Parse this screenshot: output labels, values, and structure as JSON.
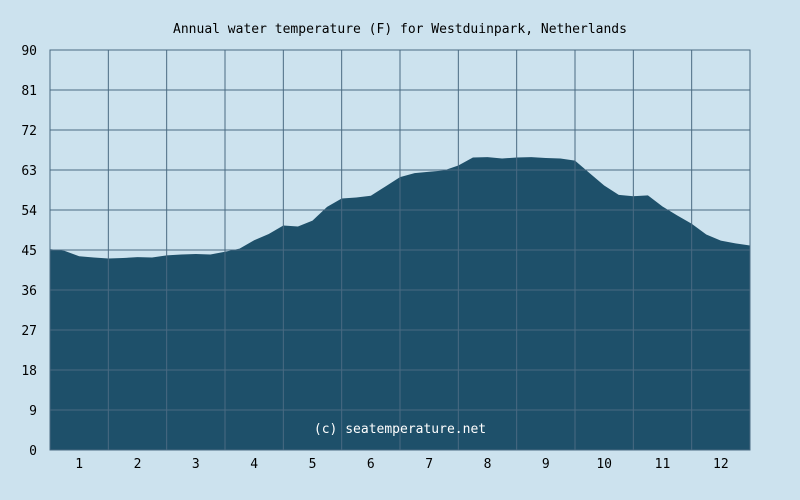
{
  "chart_data": {
    "type": "area",
    "title": "Annual water temperature (F) for Westduinpark, Netherlands",
    "xlabel": "",
    "ylabel": "",
    "credit": "(c) seatemperature.net",
    "ylim": [
      0,
      90
    ],
    "xlim": [
      0.5,
      12.5
    ],
    "y_ticks": [
      0,
      9,
      18,
      27,
      36,
      45,
      54,
      63,
      72,
      81,
      90
    ],
    "x_ticks": [
      1,
      2,
      3,
      4,
      5,
      6,
      7,
      8,
      9,
      10,
      11,
      12
    ],
    "grid": true,
    "colors": {
      "background": "#cce2ee",
      "plot_background": "#cce2ee",
      "fill": "#1e506a",
      "grid": "#4a6a82"
    },
    "series": [
      {
        "x": [
          0.5,
          0.75,
          1.0,
          1.25,
          1.5,
          1.75,
          2.0,
          2.25,
          2.5,
          2.75,
          3.0,
          3.25,
          3.5,
          3.75,
          4.0,
          4.25,
          4.5,
          4.75,
          5.0,
          5.25,
          5.5,
          5.75,
          6.0,
          6.25,
          6.5,
          6.75,
          7.0,
          7.25,
          7.5,
          7.75,
          8.0,
          8.25,
          8.5,
          8.75,
          9.0,
          9.25,
          9.5,
          9.75,
          10.0,
          10.25,
          10.5,
          10.75,
          11.0,
          11.25,
          11.5,
          11.75,
          12.0,
          12.25,
          12.5
        ],
        "values": [
          45.2,
          44.8,
          43.6,
          43.3,
          43.1,
          43.2,
          43.4,
          43.3,
          43.8,
          44.0,
          44.1,
          44.0,
          44.6,
          45.3,
          47.2,
          48.6,
          50.5,
          50.3,
          51.6,
          54.7,
          56.6,
          56.8,
          57.2,
          59.3,
          61.4,
          62.3,
          62.6,
          62.9,
          64.0,
          65.8,
          65.9,
          65.6,
          65.8,
          65.9,
          65.7,
          65.6,
          65.1,
          62.3,
          59.5,
          57.4,
          57.1,
          57.3,
          54.8,
          52.8,
          50.9,
          48.5,
          47.1,
          46.5,
          46.0
        ]
      }
    ]
  }
}
